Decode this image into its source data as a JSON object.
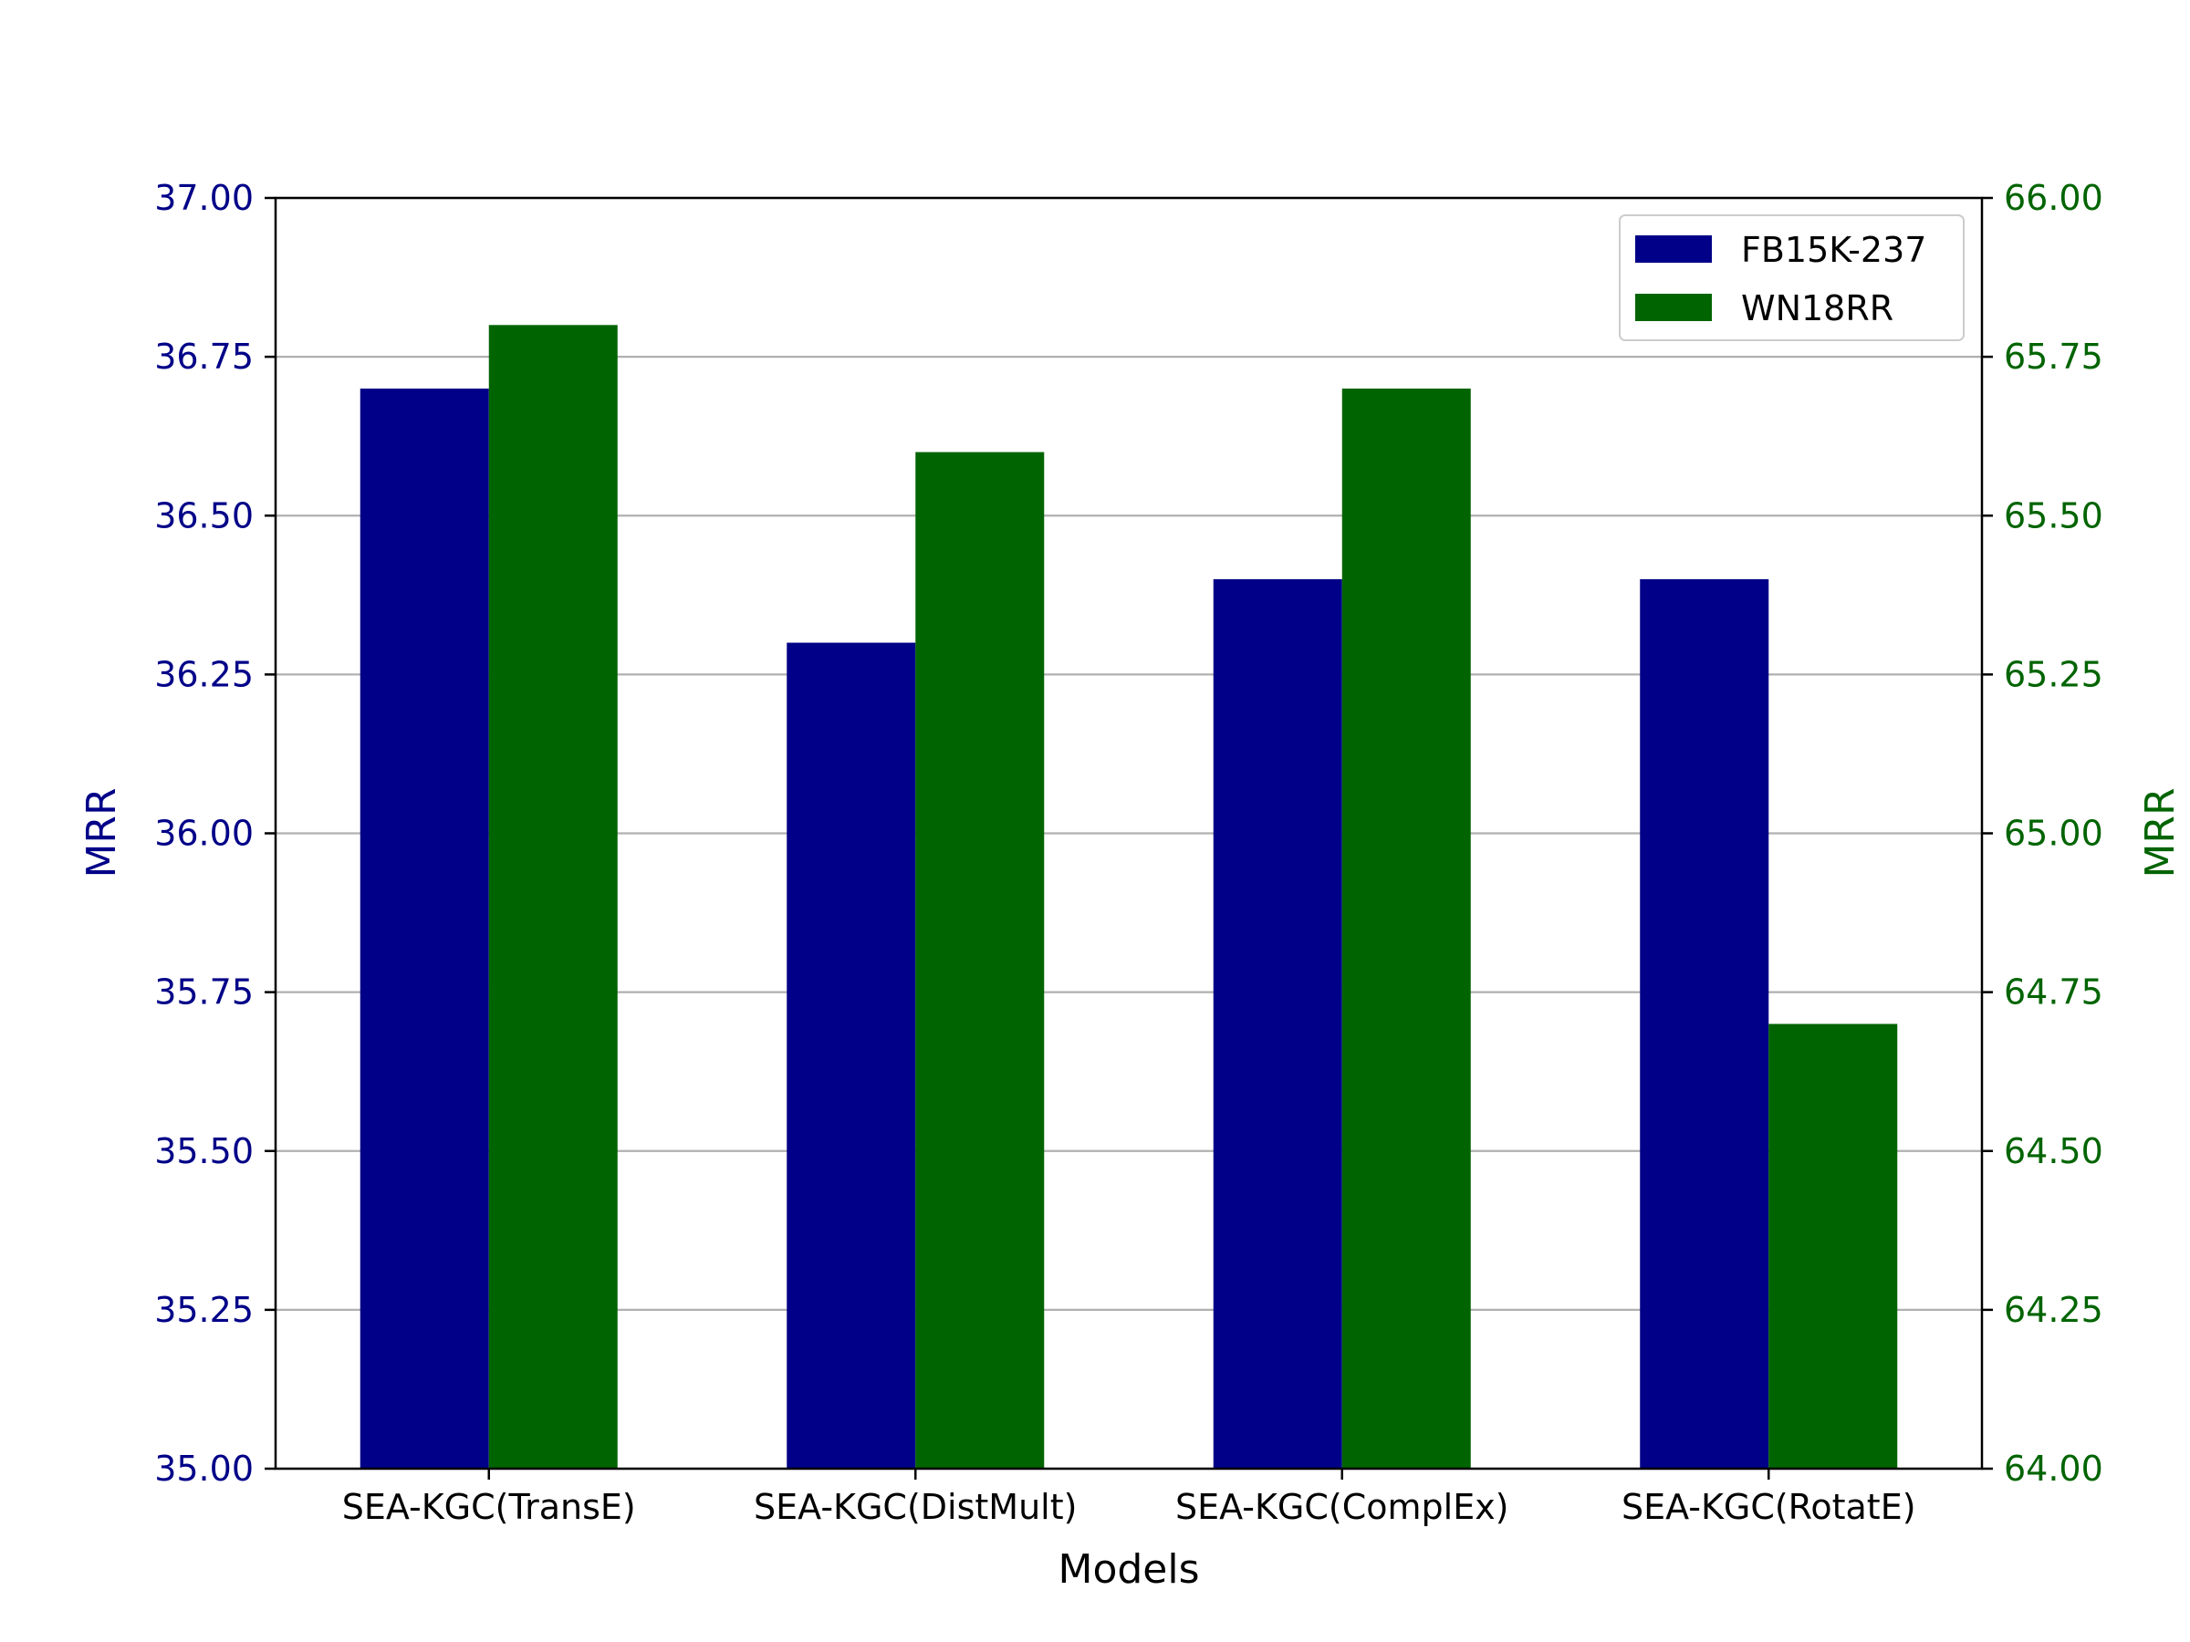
{
  "chart_data": {
    "type": "bar",
    "xlabel": "Models",
    "categories": [
      "SEA-KGC(TransE)",
      "SEA-KGC(DistMult)",
      "SEA-KGC(ComplEx)",
      "SEA-KGC(RotatE)"
    ],
    "series": [
      {
        "name": "FB15K-237",
        "axis": "left",
        "color": "#000088",
        "values": [
          36.7,
          36.3,
          36.4,
          36.4
        ]
      },
      {
        "name": "WN18RR",
        "axis": "right",
        "color": "#006400",
        "values": [
          65.8,
          65.6,
          65.7,
          64.7
        ]
      }
    ],
    "y_left": {
      "label": "MRR",
      "ylim": [
        35.0,
        37.0
      ],
      "ticks": [
        "35.00",
        "35.25",
        "35.50",
        "35.75",
        "36.00",
        "36.25",
        "36.50",
        "36.75",
        "37.00"
      ],
      "color": "#000088"
    },
    "y_right": {
      "label": "MRR",
      "ylim": [
        64.0,
        66.0
      ],
      "ticks": [
        "64.00",
        "64.25",
        "64.50",
        "64.75",
        "65.00",
        "65.25",
        "65.50",
        "65.75",
        "66.00"
      ],
      "color": "#006400"
    },
    "grid": "horizontal",
    "legend_position": "top-right"
  }
}
